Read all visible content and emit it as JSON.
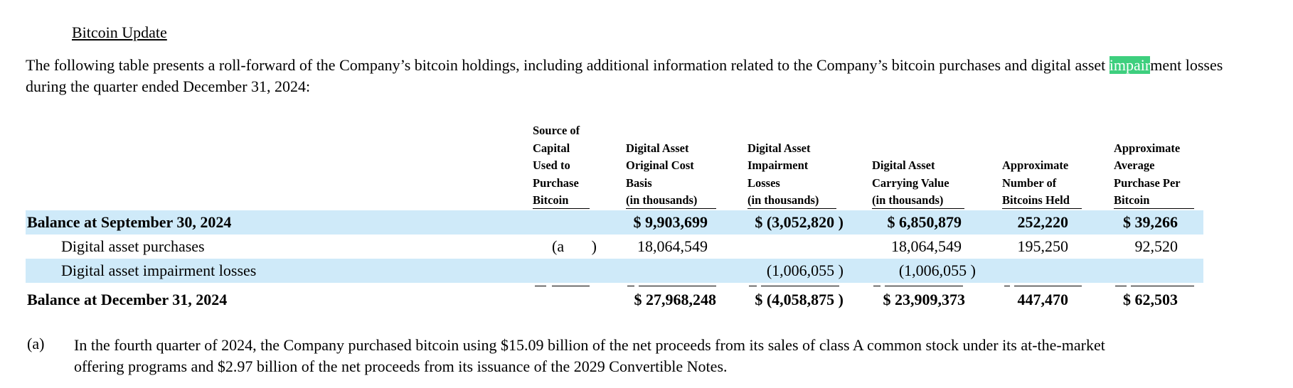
{
  "section_title": "Bitcoin Update",
  "intro": {
    "before": "The following table presents a roll-forward of the Company’s bitcoin holdings, including additional information related to the Company’s bitcoin purchases and digital asset ",
    "highlight": "impair",
    "after": "ment losses during the quarter ended December 31, 2024:",
    "highlight_color": "#3ecf7e"
  },
  "table": {
    "headers": {
      "source": [
        "Source of",
        "Capital",
        "Used to",
        "Purchase",
        "Bitcoin"
      ],
      "cost": [
        "Digital Asset",
        "Original Cost",
        "Basis",
        "(in thousands)"
      ],
      "impairment": [
        "Digital Asset",
        "Impairment",
        "Losses",
        "(in thousands)"
      ],
      "carrying": [
        "Digital Asset",
        "Carrying Value",
        "(in thousands)"
      ],
      "number": [
        "Approximate",
        "Number of",
        "Bitcoins Held"
      ],
      "avg": [
        "Approximate",
        "Average",
        "Purchase Per",
        "Bitcoin"
      ]
    },
    "rows": [
      {
        "label": "Balance at September 30, 2024",
        "source": "",
        "cost": "$ 9,903,699",
        "impairment": "$ (3,052,820 )",
        "carrying": "$ 6,850,879",
        "number": "252,220",
        "avg": "$ 39,266"
      },
      {
        "label": "Digital asset purchases",
        "source": "(a       )",
        "cost": "18,064,549",
        "impairment": "",
        "carrying": "18,064,549",
        "number": "195,250",
        "avg": "92,520"
      },
      {
        "label": "Digital asset impairment losses",
        "source": "",
        "cost": "",
        "impairment": "(1,006,055 )",
        "carrying": "(1,006,055 )",
        "number": "",
        "avg": ""
      },
      {
        "label": "Balance at December 31, 2024",
        "source": "",
        "cost": "$ 27,968,248",
        "impairment": "$ (4,058,875 )",
        "carrying": "$ 23,909,373",
        "number": "447,470",
        "avg": "$ 62,503"
      }
    ],
    "band_color": "#cfeaf9"
  },
  "footnote": {
    "mark": "(a)",
    "text": "In the fourth quarter of 2024, the Company purchased bitcoin using $15.09 billion of the net proceeds from its sales of class A common stock under its at-the-market offering programs and $2.97 billion of the net proceeds from its issuance of the 2029 Convertible Notes."
  }
}
